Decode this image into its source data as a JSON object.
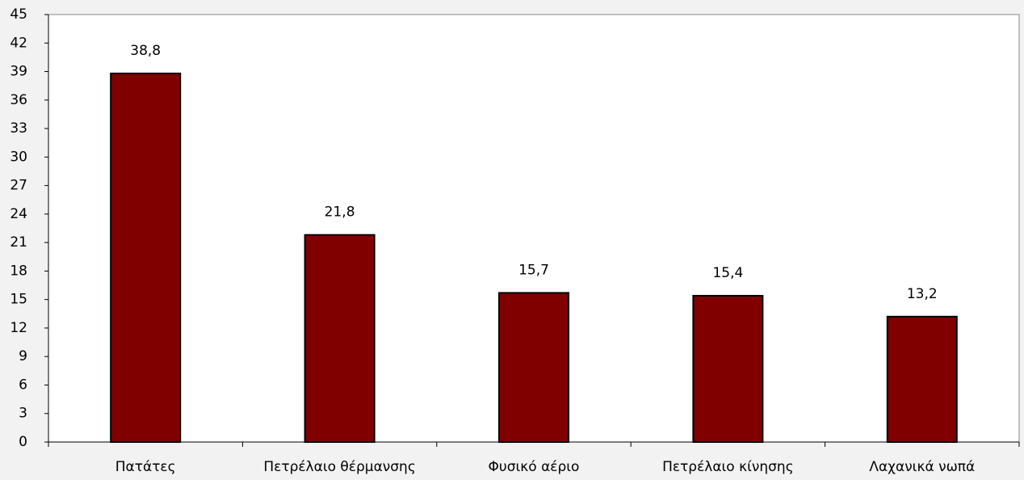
{
  "chart_data": {
    "type": "bar",
    "categories": [
      "Πατάτες",
      "Πετρέλαιο θέρμανσης",
      "Φυσικό αέριο",
      "Πετρέλαιο κίνησης",
      "Λαχανικά νωπά"
    ],
    "values": [
      38.8,
      21.8,
      15.7,
      15.4,
      13.2
    ],
    "value_labels": [
      "38,8",
      "21,8",
      "15,7",
      "15,4",
      "13,2"
    ],
    "color": "#800000",
    "ylim": [
      0,
      45
    ],
    "yticks": [
      0,
      3,
      6,
      9,
      12,
      15,
      18,
      21,
      24,
      27,
      30,
      33,
      36,
      39,
      42,
      45
    ]
  }
}
